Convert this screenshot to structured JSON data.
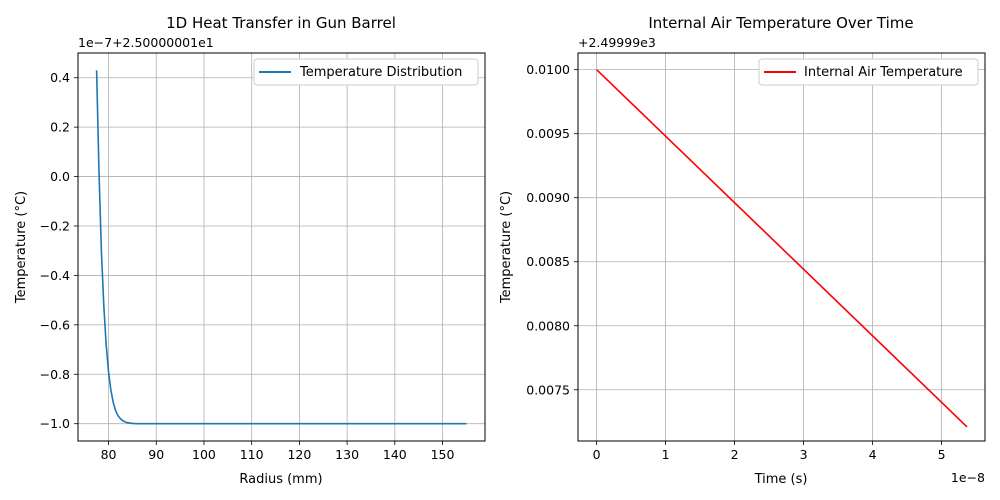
{
  "chart_data": [
    {
      "type": "line",
      "title": "1D Heat Transfer in Gun Barrel",
      "xlabel": "Radius (mm)",
      "ylabel": "Temperature (°C)",
      "offset_label": "1e−7+2.50000001e1",
      "xlim": [
        73.6,
        158.9
      ],
      "ylim": [
        -1.07,
        0.5
      ],
      "xticks": [
        80,
        90,
        100,
        110,
        120,
        130,
        140,
        150
      ],
      "yticks": [
        -1.0,
        -0.8,
        -0.6,
        -0.4,
        -0.2,
        0.0,
        0.2,
        0.4
      ],
      "ytick_labels": [
        "−1.0",
        "−0.8",
        "−0.6",
        "−0.4",
        "−0.2",
        "0.0",
        "0.2",
        "0.4"
      ],
      "grid": true,
      "legend_position": "top-right",
      "series": [
        {
          "name": "Temperature Distribution",
          "color": "#1f77b4",
          "x": [
            77.5,
            78.0,
            78.5,
            79.0,
            79.5,
            80.0,
            80.5,
            81.0,
            81.5,
            82.0,
            82.5,
            83.0,
            83.5,
            84.0,
            85.0,
            86.0,
            90.0,
            100.0,
            110.0,
            120.0,
            130.0,
            140.0,
            150.0,
            155.0
          ],
          "y": [
            0.43,
            0.02,
            -0.3,
            -0.52,
            -0.68,
            -0.79,
            -0.865,
            -0.915,
            -0.948,
            -0.968,
            -0.98,
            -0.988,
            -0.993,
            -0.996,
            -0.999,
            -1.0,
            -1.0,
            -1.0,
            -1.0,
            -1.0,
            -1.0,
            -1.0,
            -1.0,
            -1.0
          ]
        }
      ]
    },
    {
      "type": "line",
      "title": "Internal Air Temperature Over Time",
      "xlabel": "Time (s)",
      "ylabel": "Temperature (°C)",
      "offset_label": "+2.49999e3",
      "x_offset_label": "1e−8",
      "xlim": [
        -0.27,
        5.63
      ],
      "ylim": [
        0.0071,
        0.01013
      ],
      "xticks": [
        0,
        1,
        2,
        3,
        4,
        5
      ],
      "yticks": [
        0.0075,
        0.008,
        0.0085,
        0.009,
        0.0095,
        0.01
      ],
      "ytick_labels": [
        "0.0075",
        "0.0080",
        "0.0085",
        "0.0090",
        "0.0095",
        "0.0100"
      ],
      "grid": true,
      "legend_position": "top-right",
      "series": [
        {
          "name": "Internal Air Temperature",
          "color": "#ff0000",
          "x": [
            0,
            5.37
          ],
          "y": [
            0.01,
            0.00721
          ]
        }
      ]
    }
  ]
}
